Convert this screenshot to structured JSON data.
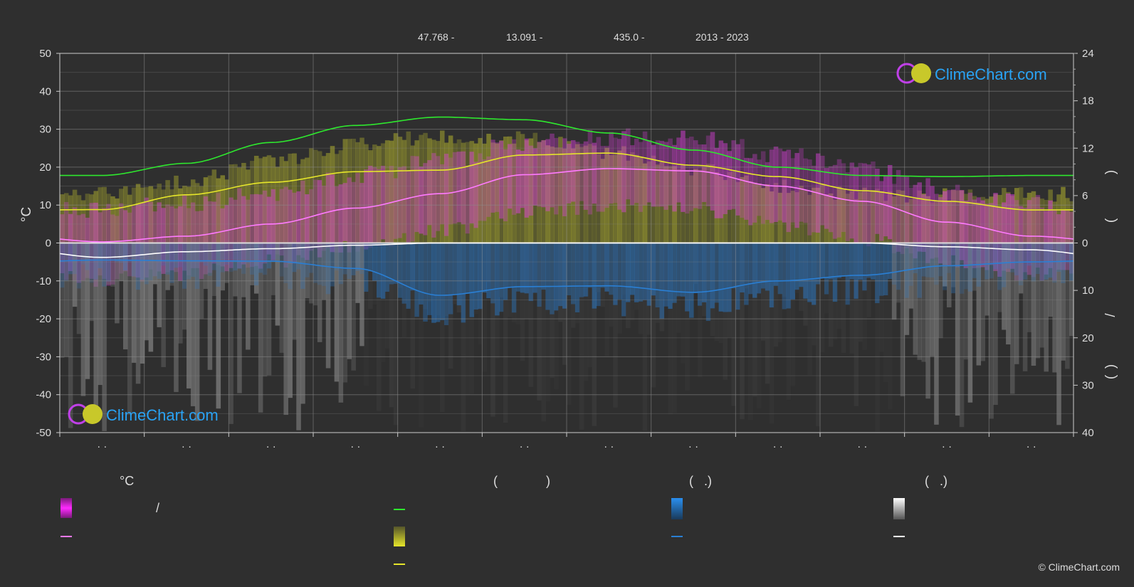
{
  "header": {
    "lat": "47.768 -",
    "lon": "13.091 -",
    "elev": "435.0 -",
    "years": "2013 - 2023"
  },
  "logo": {
    "text": "ClimeChart.com"
  },
  "copyright": "© ClimeChart.com",
  "legend": {
    "temp_unit": "°C",
    "sun_paren_left": "(",
    "sun_paren_right": ")",
    "rain_paren": "(   .)",
    "snow_paren": "(   .)",
    "slash": "/"
  },
  "colors": {
    "background": "#2f2f2f",
    "grid": "#8a8a8a",
    "daylight": "#2ee82e",
    "sunshine": "#e6e62a",
    "sunshine_area": "#9a9a2e",
    "temp_range": "#e040e0",
    "temp_mean": "#ff7aff",
    "rain": "#2a7fd4",
    "snow": "#ffffff",
    "snow_area": "#7a7a7a",
    "logo": "#29a3f5"
  },
  "chart_data": {
    "type": "line",
    "x_ticks": [
      "· ·",
      "· ·",
      "· ·",
      "· ·",
      "· ·",
      "· ·",
      "· ·",
      "· ·",
      "· ·",
      "· ·",
      "· ·",
      "· ·"
    ],
    "left_axis": {
      "label": "°C",
      "ylim": [
        -50,
        50
      ],
      "ticks": [
        50,
        40,
        30,
        20,
        10,
        0,
        -10,
        -20,
        -30,
        -40,
        -50
      ]
    },
    "right_axis_top": {
      "ylim": [
        0,
        24
      ],
      "ticks": [
        24,
        18,
        12,
        6,
        0
      ]
    },
    "right_axis_bottom": {
      "ylim": [
        0,
        40
      ],
      "ticks": [
        10,
        20,
        30,
        40
      ]
    },
    "right_axis_label_chars": [
      ")",
      "(",
      "/",
      ")",
      "("
    ],
    "grid": true,
    "series": [
      {
        "key": "daylight",
        "unit": "°C-axis",
        "values": [
          17.8,
          21,
          26.5,
          31,
          33.2,
          32.5,
          29,
          24.5,
          20,
          17.8,
          17.5,
          17.8
        ]
      },
      {
        "key": "sunshine",
        "unit": "°C-axis",
        "values": [
          8.8,
          12.7,
          16,
          18.8,
          19.2,
          23.2,
          23.7,
          20.5,
          17.5,
          13.8,
          11,
          8.7
        ]
      },
      {
        "key": "temp_mean",
        "unit": "°C",
        "values": [
          0.3,
          1.8,
          5,
          9.2,
          13,
          18,
          19.6,
          19,
          15,
          11,
          5.5,
          1.8
        ]
      },
      {
        "key": "snow_line",
        "unit": "°C-axis",
        "values": [
          -3.8,
          -2.3,
          -1.5,
          -0.6,
          0,
          0,
          0,
          0,
          0,
          0,
          -1,
          -1.8
        ]
      },
      {
        "key": "rain_line",
        "unit": "°C-axis",
        "values": [
          -4.5,
          -4.7,
          -4.8,
          -6.7,
          -13.8,
          -11.5,
          -11.3,
          -13,
          -10,
          -8.5,
          -6,
          -5
        ]
      }
    ]
  }
}
